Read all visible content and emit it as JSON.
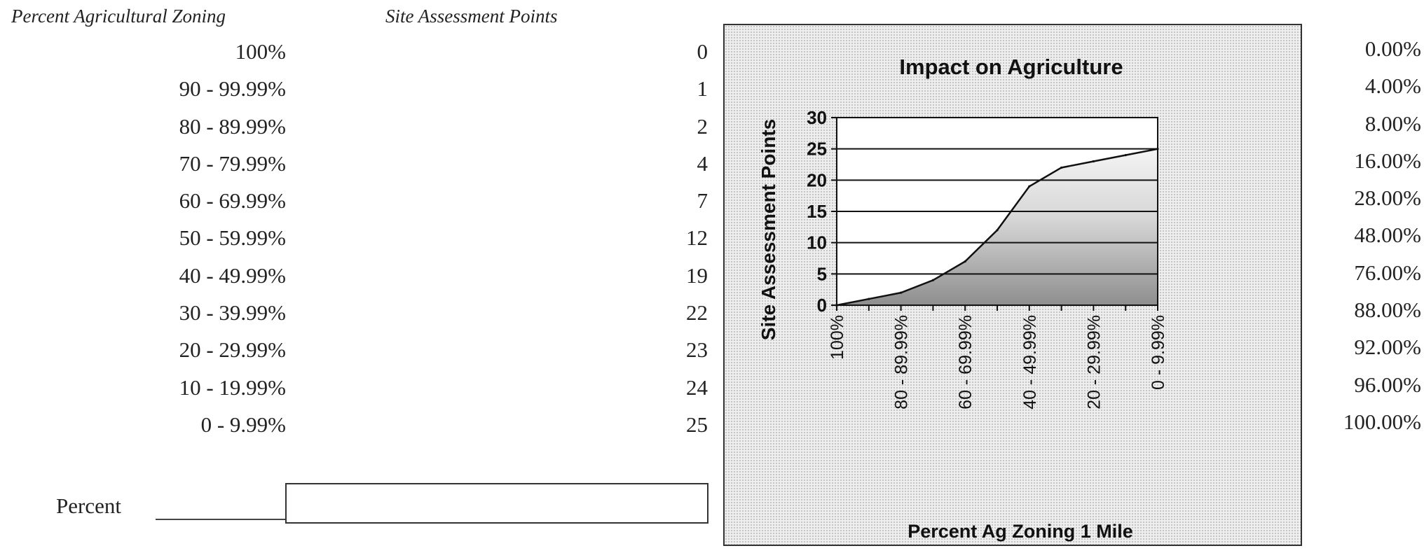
{
  "table": {
    "header_zoning": "Percent Agricultural Zoning",
    "header_points": "Site Assessment Points",
    "rows": [
      {
        "range": "100%",
        "points": "0"
      },
      {
        "range": "90 - 99.99%",
        "points": "1"
      },
      {
        "range": "80 - 89.99%",
        "points": "2"
      },
      {
        "range": "70 - 79.99%",
        "points": "4"
      },
      {
        "range": "60 - 69.99%",
        "points": "7"
      },
      {
        "range": "50 - 59.99%",
        "points": "12"
      },
      {
        "range": "40 - 49.99%",
        "points": "19"
      },
      {
        "range": "30 - 39.99%",
        "points": "22"
      },
      {
        "range": "20 - 29.99%",
        "points": "23"
      },
      {
        "range": "10 - 19.99%",
        "points": "24"
      },
      {
        "range": "0 - 9.99%",
        "points": "25"
      }
    ]
  },
  "right_percentages": [
    "0.00%",
    "4.00%",
    "8.00%",
    "16.00%",
    "28.00%",
    "48.00%",
    "76.00%",
    "88.00%",
    "92.00%",
    "96.00%",
    "100.00%"
  ],
  "percent_entry": {
    "label": "Percent",
    "value": ""
  },
  "chart_data": {
    "type": "area",
    "title": "Impact on Agriculture",
    "xlabel": "Percent Ag Zoning 1 Mile",
    "ylabel": "Site Assessment Points",
    "categories": [
      "100%",
      "90 - 99.99%",
      "80 - 89.99%",
      "70 - 79.99%",
      "60 - 69.99%",
      "50 - 59.99%",
      "40 - 49.99%",
      "30 - 39.99%",
      "20 - 29.99%",
      "10 - 19.99%",
      "0 - 9.99%"
    ],
    "x_tick_labels_shown": [
      "100%",
      "80 - 89.99%",
      "60 - 69.99%",
      "40 - 49.99%",
      "20 - 29.99%",
      "0 - 9.99%"
    ],
    "values": [
      0,
      1,
      2,
      4,
      7,
      12,
      19,
      22,
      23,
      24,
      25
    ],
    "ylim": [
      0,
      30
    ],
    "yticks": [
      0,
      5,
      10,
      15,
      20,
      25,
      30
    ],
    "grid": true,
    "legend": "none"
  }
}
